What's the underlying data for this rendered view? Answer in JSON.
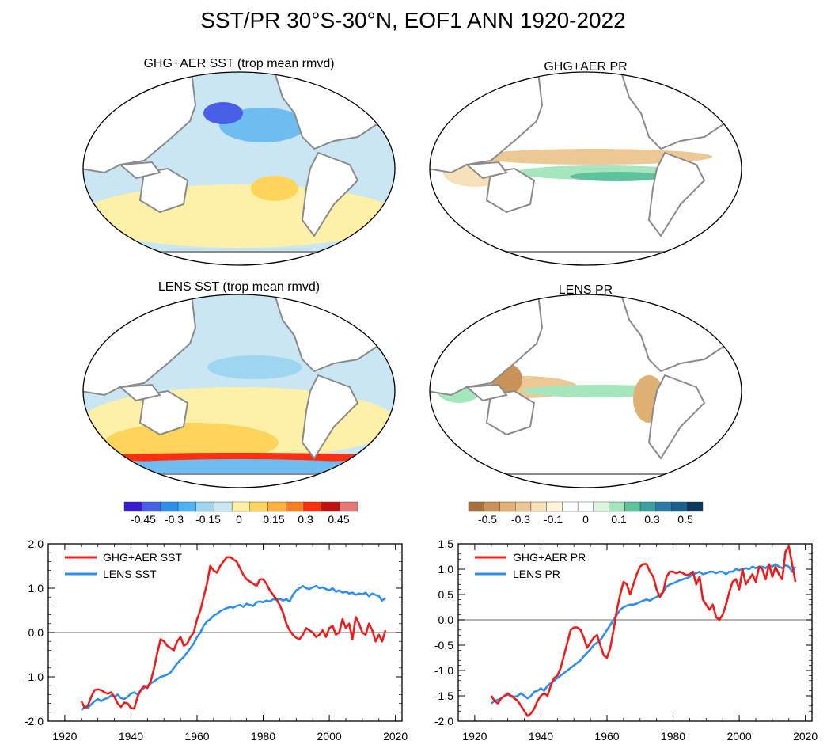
{
  "figure": {
    "title": "SST/PR 30°S-30°N, EOF1 ANN 1920-2022"
  },
  "colors": {
    "sst_scale": [
      "#3a1cd6",
      "#4a5fe8",
      "#2f8ff0",
      "#4fb2f2",
      "#9ed6f2",
      "#c9e6f2",
      "#fff0a8",
      "#ffd45a",
      "#ffb23a",
      "#ff7f1e",
      "#ff2f0f",
      "#c21010",
      "#e87878"
    ],
    "pr_scale": [
      "#a8703a",
      "#c99257",
      "#deb074",
      "#ecc994",
      "#f6e1b8",
      "#fff6dc",
      "#ffffff",
      "#ffffff",
      "#dbf5e2",
      "#a6e6bd",
      "#5fc29a",
      "#3b9fa0",
      "#2e78a8",
      "#1b5f8f",
      "#0d3a5c"
    ],
    "red_line": "#ee1c1c",
    "blue_line": "#2f8fe8",
    "map_base_sst": "#c9e6f2",
    "map_land": "#ffffff",
    "coast": "#8a8a8a"
  },
  "maps": [
    {
      "title": "GHG+AER SST (trop mean rmvd)",
      "kind": "sst_ghg"
    },
    {
      "title": "GHG+AER PR",
      "kind": "pr_ghg"
    },
    {
      "title": "LENS SST (trop mean rmvd)",
      "kind": "sst_lens"
    },
    {
      "title": "LENS PR",
      "kind": "pr_lens"
    }
  ],
  "colorbars": {
    "sst": {
      "labels": [
        "-0.45",
        "-0.3",
        "-0.15",
        "0",
        "0.15",
        "0.3",
        "0.45"
      ]
    },
    "pr": {
      "labels": [
        "-0.5",
        "-0.3",
        "-0.1",
        "0",
        "0.1",
        "0.3",
        "0.5"
      ]
    }
  },
  "chart_data": [
    {
      "type": "line",
      "title": "",
      "xlabel": "",
      "ylabel": "",
      "xlim": [
        1915,
        2022
      ],
      "ylim": [
        -2.0,
        2.0
      ],
      "xticks": [
        "1920",
        "1940",
        "1960",
        "1980",
        "2000",
        "2020"
      ],
      "yticks": [
        "2.0",
        "1.0",
        "0.0",
        "-1.0",
        "-2.0"
      ],
      "zero_line": true,
      "legend": "top-left",
      "series": [
        {
          "name": "GHG+AER SST",
          "color": "red",
          "x": [
            1925,
            1926,
            1927,
            1928,
            1929,
            1930,
            1931,
            1932,
            1933,
            1934,
            1935,
            1936,
            1937,
            1938,
            1939,
            1940,
            1941,
            1942,
            1943,
            1944,
            1945,
            1946,
            1947,
            1948,
            1949,
            1950,
            1951,
            1952,
            1953,
            1954,
            1955,
            1956,
            1957,
            1958,
            1959,
            1960,
            1961,
            1962,
            1963,
            1964,
            1965,
            1966,
            1967,
            1968,
            1969,
            1970,
            1971,
            1972,
            1973,
            1974,
            1975,
            1976,
            1977,
            1978,
            1979,
            1980,
            1981,
            1982,
            1983,
            1984,
            1985,
            1986,
            1987,
            1988,
            1989,
            1990,
            1991,
            1992,
            1993,
            1994,
            1995,
            1996,
            1997,
            1998,
            1999,
            2000,
            2001,
            2002,
            2003,
            2004,
            2005,
            2006,
            2007,
            2008,
            2009,
            2010,
            2011,
            2012,
            2013,
            2014,
            2015,
            2016,
            2017
          ],
          "y": [
            -1.55,
            -1.7,
            -1.65,
            -1.45,
            -1.3,
            -1.28,
            -1.3,
            -1.35,
            -1.38,
            -1.35,
            -1.45,
            -1.6,
            -1.68,
            -1.58,
            -1.6,
            -1.7,
            -1.72,
            -1.45,
            -1.3,
            -1.2,
            -1.25,
            -1.1,
            -0.8,
            -0.45,
            -0.15,
            -0.2,
            -0.3,
            -0.35,
            -0.4,
            -0.2,
            -0.1,
            -0.3,
            -0.25,
            -0.1,
            0.0,
            0.3,
            0.5,
            0.8,
            1.1,
            1.5,
            1.4,
            1.35,
            1.5,
            1.6,
            1.7,
            1.7,
            1.65,
            1.6,
            1.45,
            1.3,
            1.2,
            1.15,
            1.1,
            1.05,
            1.2,
            1.2,
            1.1,
            0.95,
            0.85,
            0.75,
            0.62,
            0.45,
            0.2,
            0.05,
            -0.05,
            -0.12,
            -0.15,
            -0.05,
            0.1,
            0.05,
            0.0,
            -0.1,
            -0.05,
            0.05,
            -0.1,
            0.1,
            0.15,
            -0.05,
            0.0,
            0.3,
            0.1,
            0.2,
            -0.15,
            0.35,
            0.2,
            0.0,
            -0.05,
            0.2,
            0.05,
            -0.2,
            -0.05,
            -0.2,
            0.05
          ]
        },
        {
          "name": "LENS SST",
          "color": "blue",
          "x": [
            1925,
            1926,
            1927,
            1928,
            1929,
            1930,
            1931,
            1932,
            1933,
            1934,
            1935,
            1936,
            1937,
            1938,
            1939,
            1940,
            1941,
            1942,
            1943,
            1944,
            1945,
            1946,
            1947,
            1948,
            1949,
            1950,
            1951,
            1952,
            1953,
            1954,
            1955,
            1956,
            1957,
            1958,
            1959,
            1960,
            1961,
            1962,
            1963,
            1964,
            1965,
            1966,
            1967,
            1968,
            1969,
            1970,
            1971,
            1972,
            1973,
            1974,
            1975,
            1976,
            1977,
            1978,
            1979,
            1980,
            1981,
            1982,
            1983,
            1984,
            1985,
            1986,
            1987,
            1988,
            1989,
            1990,
            1991,
            1992,
            1993,
            1994,
            1995,
            1996,
            1997,
            1998,
            1999,
            2000,
            2001,
            2002,
            2003,
            2004,
            2005,
            2006,
            2007,
            2008,
            2009,
            2010,
            2011,
            2012,
            2013,
            2014,
            2015,
            2016,
            2017
          ],
          "y": [
            -1.75,
            -1.68,
            -1.7,
            -1.62,
            -1.55,
            -1.5,
            -1.55,
            -1.5,
            -1.48,
            -1.42,
            -1.45,
            -1.4,
            -1.48,
            -1.5,
            -1.45,
            -1.38,
            -1.35,
            -1.4,
            -1.3,
            -1.25,
            -1.2,
            -1.15,
            -1.1,
            -1.05,
            -1.0,
            -0.98,
            -0.95,
            -0.9,
            -0.8,
            -0.7,
            -0.62,
            -0.55,
            -0.45,
            -0.35,
            -0.25,
            -0.1,
            0.0,
            0.15,
            0.25,
            0.3,
            0.38,
            0.42,
            0.48,
            0.52,
            0.55,
            0.58,
            0.56,
            0.6,
            0.62,
            0.58,
            0.65,
            0.62,
            0.6,
            0.68,
            0.7,
            0.68,
            0.72,
            0.7,
            0.75,
            0.74,
            0.76,
            0.72,
            0.75,
            0.7,
            0.85,
            0.95,
            1.0,
            1.05,
            1.0,
            0.98,
            1.02,
            1.05,
            1.0,
            1.02,
            0.98,
            0.95,
            1.0,
            0.92,
            0.95,
            0.9,
            0.92,
            0.88,
            0.9,
            0.85,
            0.88,
            0.86,
            0.9,
            0.82,
            0.88,
            0.85,
            0.82,
            0.72,
            0.78
          ]
        }
      ]
    },
    {
      "type": "line",
      "title": "",
      "xlabel": "",
      "ylabel": "",
      "xlim": [
        1915,
        2022
      ],
      "ylim": [
        -2.0,
        1.5
      ],
      "xticks": [
        "1920",
        "1940",
        "1960",
        "1980",
        "2000",
        "2020"
      ],
      "yticks": [
        "1.5",
        "1.0",
        "0.5",
        "0.0",
        "-0.5",
        "-1.0",
        "-1.5",
        "-2.0"
      ],
      "zero_line": true,
      "legend": "top-left",
      "series": [
        {
          "name": "GHG+AER PR",
          "color": "red",
          "x": [
            1925,
            1926,
            1927,
            1928,
            1929,
            1930,
            1931,
            1932,
            1933,
            1934,
            1935,
            1936,
            1937,
            1938,
            1939,
            1940,
            1941,
            1942,
            1943,
            1944,
            1945,
            1946,
            1947,
            1948,
            1949,
            1950,
            1951,
            1952,
            1953,
            1954,
            1955,
            1956,
            1957,
            1958,
            1959,
            1960,
            1961,
            1962,
            1963,
            1964,
            1965,
            1966,
            1967,
            1968,
            1969,
            1970,
            1971,
            1972,
            1973,
            1974,
            1975,
            1976,
            1977,
            1978,
            1979,
            1980,
            1981,
            1982,
            1983,
            1984,
            1985,
            1986,
            1987,
            1988,
            1989,
            1990,
            1991,
            1992,
            1993,
            1994,
            1995,
            1996,
            1997,
            1998,
            1999,
            2000,
            2001,
            2002,
            2003,
            2004,
            2005,
            2006,
            2007,
            2008,
            2009,
            2010,
            2011,
            2012,
            2013,
            2014,
            2015,
            2016,
            2017
          ],
          "y": [
            -1.5,
            -1.6,
            -1.65,
            -1.55,
            -1.5,
            -1.45,
            -1.5,
            -1.55,
            -1.6,
            -1.7,
            -1.8,
            -1.9,
            -1.85,
            -1.75,
            -1.6,
            -1.5,
            -1.45,
            -1.5,
            -1.3,
            -1.15,
            -1.1,
            -0.95,
            -0.7,
            -0.45,
            -0.2,
            -0.15,
            -0.15,
            -0.2,
            -0.35,
            -0.55,
            -0.45,
            -0.35,
            -0.3,
            -0.5,
            -0.7,
            -0.75,
            -0.55,
            -0.2,
            0.2,
            0.5,
            0.75,
            0.7,
            0.5,
            0.7,
            0.9,
            1.05,
            1.1,
            1.1,
            0.95,
            0.85,
            0.6,
            0.45,
            0.55,
            0.85,
            0.95,
            0.95,
            0.92,
            0.95,
            0.92,
            0.88,
            0.9,
            0.95,
            0.7,
            0.85,
            0.4,
            0.3,
            0.2,
            0.3,
            0.05,
            0.0,
            0.1,
            0.3,
            0.55,
            0.75,
            0.8,
            0.6,
            1.0,
            0.7,
            0.8,
            0.9,
            0.75,
            1.05,
            1.0,
            0.8,
            1.1,
            0.85,
            1.05,
            0.9,
            0.8,
            1.35,
            1.45,
            1.1,
            0.75
          ]
        },
        {
          "name": "LENS PR",
          "color": "blue",
          "x": [
            1925,
            1926,
            1927,
            1928,
            1929,
            1930,
            1931,
            1932,
            1933,
            1934,
            1935,
            1936,
            1937,
            1938,
            1939,
            1940,
            1941,
            1942,
            1943,
            1944,
            1945,
            1946,
            1947,
            1948,
            1949,
            1950,
            1951,
            1952,
            1953,
            1954,
            1955,
            1956,
            1957,
            1958,
            1959,
            1960,
            1961,
            1962,
            1963,
            1964,
            1965,
            1966,
            1967,
            1968,
            1969,
            1970,
            1971,
            1972,
            1973,
            1974,
            1975,
            1976,
            1977,
            1978,
            1979,
            1980,
            1981,
            1982,
            1983,
            1984,
            1985,
            1986,
            1987,
            1988,
            1989,
            1990,
            1991,
            1992,
            1993,
            1994,
            1995,
            1996,
            1997,
            1998,
            1999,
            2000,
            2001,
            2002,
            2003,
            2004,
            2005,
            2006,
            2007,
            2008,
            2009,
            2010,
            2011,
            2012,
            2013,
            2014,
            2015,
            2016,
            2017
          ],
          "y": [
            -1.65,
            -1.6,
            -1.58,
            -1.55,
            -1.5,
            -1.48,
            -1.5,
            -1.52,
            -1.5,
            -1.45,
            -1.5,
            -1.55,
            -1.5,
            -1.42,
            -1.4,
            -1.35,
            -1.4,
            -1.3,
            -1.25,
            -1.2,
            -1.15,
            -1.1,
            -1.05,
            -1.0,
            -0.95,
            -0.9,
            -0.85,
            -0.8,
            -0.72,
            -0.65,
            -0.58,
            -0.5,
            -0.45,
            -0.4,
            -0.3,
            -0.2,
            -0.1,
            0.0,
            0.1,
            0.2,
            0.25,
            0.28,
            0.3,
            0.3,
            0.32,
            0.35,
            0.38,
            0.4,
            0.38,
            0.42,
            0.45,
            0.5,
            0.55,
            0.65,
            0.7,
            0.72,
            0.75,
            0.78,
            0.8,
            0.82,
            0.85,
            0.9,
            0.92,
            0.95,
            0.9,
            0.92,
            0.95,
            0.95,
            0.92,
            0.95,
            0.95,
            0.9,
            0.95,
            0.95,
            1.0,
            0.98,
            1.0,
            1.02,
            1.0,
            1.05,
            1.02,
            1.05,
            1.05,
            1.02,
            1.08,
            1.05,
            1.1,
            1.05,
            1.02,
            1.08,
            1.05,
            0.95,
            1.05
          ]
        }
      ]
    }
  ]
}
